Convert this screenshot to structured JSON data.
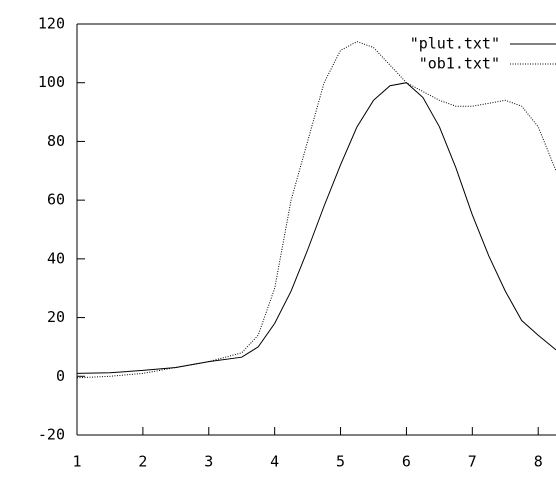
{
  "chart_data": {
    "type": "line",
    "x": [
      1,
      1.5,
      2,
      2.5,
      3,
      3.5,
      3.75,
      4,
      4.25,
      4.5,
      4.75,
      5,
      5.25,
      5.5,
      5.75,
      6,
      6.25,
      6.5,
      6.75,
      7,
      7.25,
      7.5,
      7.75,
      8,
      8.27
    ],
    "series": [
      {
        "name": "\"plut.txt\"",
        "color": "#000000",
        "dash": "solid",
        "values": [
          1,
          1.2,
          2,
          3,
          5,
          6.5,
          10,
          18,
          29,
          43,
          58,
          72,
          85,
          94,
          99,
          100,
          95,
          85,
          71,
          55,
          41,
          29,
          19,
          14,
          9
        ]
      },
      {
        "name": "\"ob1.txt\"",
        "color": "#000000",
        "dash": "dotted",
        "values": [
          -0.5,
          0,
          1,
          3,
          5,
          8,
          14,
          30,
          60,
          80,
          100,
          111,
          114,
          112,
          106,
          100,
          97,
          94,
          92,
          92,
          93,
          94,
          92,
          85,
          70
        ]
      }
    ],
    "xlim": [
      1,
      8.27
    ],
    "xticks": [
      1,
      2,
      3,
      4,
      5,
      6,
      7,
      8
    ],
    "ylim": [
      -20,
      120
    ],
    "yticks": [
      -20,
      0,
      20,
      40,
      60,
      80,
      100,
      120
    ],
    "legend": "top-right"
  }
}
